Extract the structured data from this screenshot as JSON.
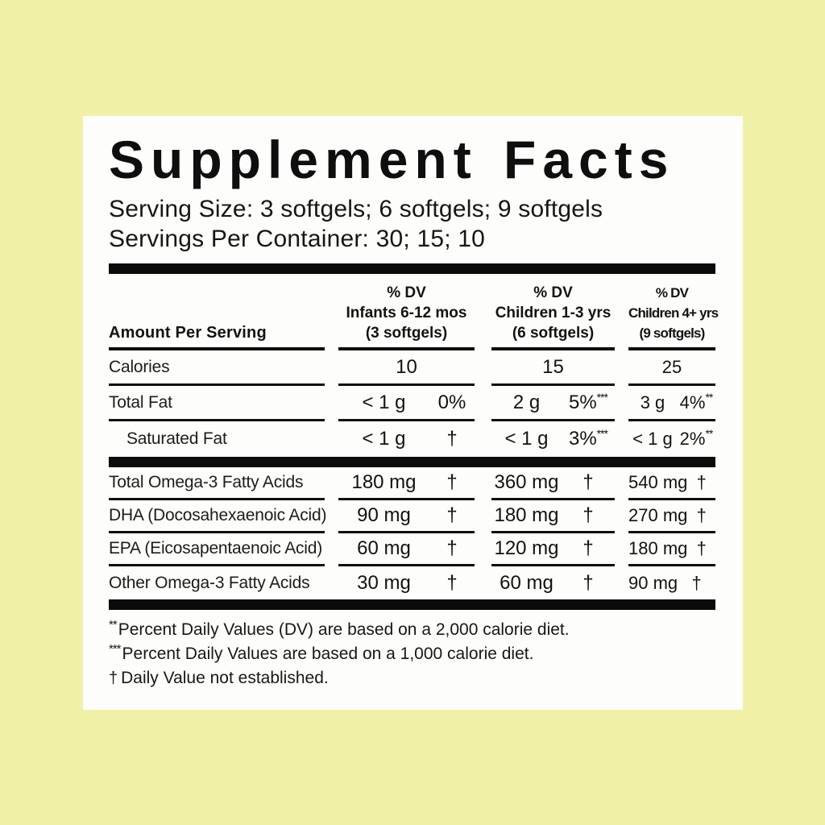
{
  "colors": {
    "page_background": "#f0f1a6",
    "label_background": "#fdfdfb",
    "ink": "#0e0e0e"
  },
  "label": {
    "title": "Supplement Facts",
    "serving_size": "Serving Size: 3 softgels; 6 softgels; 9 softgels",
    "servings_per_container": "Servings Per Container: 30; 15; 10",
    "amount_per_serving": "Amount Per Serving",
    "columns": [
      {
        "dv": "% DV",
        "group": "Infants 6-12 mos",
        "serving": "(3 softgels)"
      },
      {
        "dv": "% DV",
        "group": "Children 1-3 yrs",
        "serving": "(6 softgels)"
      },
      {
        "dv": "% DV",
        "group": "Children 4+ yrs",
        "serving": "(9 softgels)"
      }
    ],
    "rows": [
      {
        "name": "Calories",
        "values": [
          {
            "amount": "10",
            "dv": ""
          },
          {
            "amount": "15",
            "dv": ""
          },
          {
            "amount": "25",
            "dv": ""
          }
        ]
      },
      {
        "name": "Total Fat",
        "values": [
          {
            "amount": "< 1 g",
            "dv": "0%"
          },
          {
            "amount": "2 g",
            "dv": "5%",
            "sup": "***"
          },
          {
            "amount": "3 g",
            "dv": "4%",
            "sup": "**"
          }
        ]
      },
      {
        "name": "Saturated Fat",
        "values": [
          {
            "amount": "< 1 g",
            "dv": "†"
          },
          {
            "amount": "< 1 g",
            "dv": "3%",
            "sup": "***"
          },
          {
            "amount": "< 1 g",
            "dv": "2%",
            "sup": "**"
          }
        ]
      },
      {
        "name": "Total Omega-3 Fatty Acids",
        "values": [
          {
            "amount": "180 mg",
            "dv": "†"
          },
          {
            "amount": "360 mg",
            "dv": "†"
          },
          {
            "amount": "540 mg",
            "dv": "†"
          }
        ]
      },
      {
        "name": "DHA (Docosahexaenoic Acid)",
        "values": [
          {
            "amount": "90 mg",
            "dv": "†"
          },
          {
            "amount": "180 mg",
            "dv": "†"
          },
          {
            "amount": "270 mg",
            "dv": "†"
          }
        ]
      },
      {
        "name": "EPA (Eicosapentaenoic Acid)",
        "values": [
          {
            "amount": "60 mg",
            "dv": "†"
          },
          {
            "amount": "120 mg",
            "dv": "†"
          },
          {
            "amount": "180 mg",
            "dv": "†"
          }
        ]
      },
      {
        "name": "Other Omega-3 Fatty Acids",
        "values": [
          {
            "amount": "30 mg",
            "dv": "†"
          },
          {
            "amount": "60 mg",
            "dv": "†"
          },
          {
            "amount": "90 mg",
            "dv": "†"
          }
        ]
      }
    ],
    "footnotes": [
      {
        "marker": "**",
        "text": "Percent Daily Values (DV) are based on a 2,000 calorie diet."
      },
      {
        "marker": "***",
        "text": "Percent Daily Values are based on a 1,000 calorie diet."
      },
      {
        "marker": "†",
        "text": "Daily Value not established."
      }
    ]
  }
}
